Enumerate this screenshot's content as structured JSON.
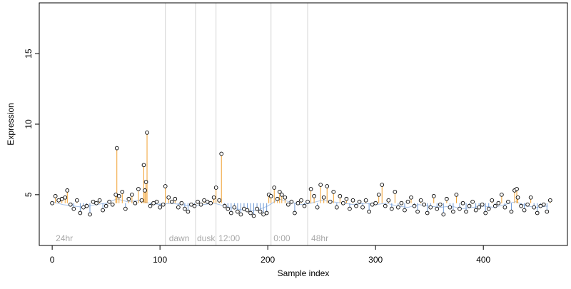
{
  "chart_data": {
    "type": "scatter",
    "title": "",
    "xlabel": "Sample index",
    "ylabel": "Expression",
    "xlim": [
      -12,
      478
    ],
    "ylim": [
      1.4,
      18.6
    ],
    "x_ticks": [
      0,
      100,
      200,
      300,
      400
    ],
    "y_ticks": [
      5,
      10,
      15
    ],
    "grid": false,
    "legend": "none",
    "colors": {
      "above_stem": "#f0a030",
      "below_stem": "#6f9ad6",
      "marker_edge": "#000000",
      "separator": "#d4d4d4",
      "section_label": "#a8a8a8",
      "axis": "#000000",
      "fitted_curve": "#6f9ad6"
    },
    "baseline": 4.4,
    "section_boundaries": [
      105,
      133,
      152,
      203,
      237
    ],
    "section_labels": [
      {
        "text": "24hr",
        "x": 2
      },
      {
        "text": "dawn",
        "x": 107
      },
      {
        "text": "dusk",
        "x": 133
      },
      {
        "text": "12:00",
        "x": 153
      },
      {
        "text": "0:00",
        "x": 204
      },
      {
        "text": "48hr",
        "x": 239
      }
    ],
    "series": [
      {
        "x": [
          0,
          3,
          6,
          9,
          12,
          14,
          17,
          20,
          23,
          26,
          29,
          32,
          35,
          38,
          41,
          44,
          47,
          50,
          53,
          56,
          59,
          60,
          62,
          65,
          68,
          71,
          74,
          77,
          80,
          83,
          85,
          86,
          87,
          88,
          91,
          94,
          97,
          100,
          103,
          105,
          108,
          111,
          114,
          117,
          120,
          123,
          126,
          129,
          132,
          135,
          138,
          141,
          144,
          147,
          150,
          152,
          155,
          157,
          160,
          163,
          166,
          169,
          172,
          175,
          178,
          181,
          184,
          187,
          190,
          193,
          196,
          199,
          201,
          203,
          206,
          209,
          211,
          213,
          216,
          219,
          222,
          225,
          228,
          231,
          234,
          237,
          240,
          243,
          246,
          249,
          252,
          255,
          258,
          261,
          264,
          267,
          270,
          273,
          276,
          279,
          282,
          285,
          288,
          291,
          294,
          297,
          300,
          303,
          306,
          309,
          312,
          315,
          318,
          321,
          324,
          327,
          330,
          333,
          336,
          339,
          342,
          345,
          348,
          351,
          354,
          357,
          360,
          363,
          366,
          369,
          372,
          375,
          378,
          381,
          384,
          387,
          390,
          393,
          396,
          399,
          402,
          405,
          408,
          411,
          414,
          417,
          420,
          423,
          426,
          429,
          431,
          432,
          435,
          438,
          441,
          444,
          447,
          450,
          453,
          456,
          459,
          462
        ],
        "y": [
          4.4,
          4.9,
          4.6,
          4.7,
          4.8,
          5.3,
          4.3,
          4.0,
          4.6,
          3.7,
          4.1,
          4.2,
          3.6,
          4.5,
          4.4,
          4.6,
          3.9,
          4.2,
          4.5,
          4.3,
          5.0,
          8.3,
          4.9,
          5.2,
          4.0,
          4.7,
          5.0,
          4.4,
          5.4,
          4.6,
          7.1,
          5.3,
          5.9,
          9.4,
          4.2,
          4.4,
          4.5,
          4.1,
          4.3,
          5.6,
          4.8,
          4.5,
          4.7,
          4.1,
          4.4,
          4.0,
          3.8,
          4.3,
          4.2,
          4.5,
          4.3,
          4.6,
          4.5,
          4.4,
          4.8,
          5.5,
          4.6,
          7.9,
          4.2,
          4.0,
          3.7,
          4.1,
          3.8,
          3.6,
          4.0,
          3.9,
          3.7,
          3.5,
          4.0,
          3.8,
          3.6,
          3.7,
          5.0,
          4.9,
          5.5,
          4.7,
          5.2,
          5.0,
          4.8,
          4.3,
          4.5,
          3.7,
          4.4,
          4.6,
          4.2,
          4.5,
          5.4,
          4.9,
          4.1,
          5.7,
          4.8,
          5.6,
          4.5,
          5.2,
          4.1,
          4.9,
          4.4,
          4.7,
          4.0,
          4.6,
          4.2,
          4.5,
          4.1,
          4.6,
          3.8,
          4.3,
          4.4,
          5.0,
          5.7,
          4.2,
          4.6,
          4.0,
          5.2,
          4.1,
          4.4,
          3.9,
          4.5,
          4.8,
          4.2,
          3.8,
          4.6,
          4.3,
          3.7,
          4.1,
          4.9,
          4.0,
          4.3,
          3.6,
          4.7,
          4.1,
          3.8,
          5.0,
          4.0,
          4.4,
          3.8,
          4.2,
          4.5,
          3.9,
          4.1,
          4.3,
          3.7,
          4.0,
          4.6,
          4.2,
          4.4,
          5.0,
          4.1,
          4.5,
          3.8,
          5.3,
          5.4,
          4.8,
          4.2,
          3.9,
          4.3,
          4.8,
          4.1,
          3.7,
          4.2,
          4.3,
          3.8,
          4.6
        ]
      }
    ],
    "fitted_curve": {
      "x": [
        0,
        10,
        20,
        30,
        40,
        50,
        60,
        70,
        80,
        90,
        100,
        110,
        120,
        130,
        140,
        150,
        160,
        170,
        180,
        190,
        200,
        210,
        220,
        230,
        240,
        250,
        260,
        270,
        280,
        290,
        300,
        310,
        320,
        330,
        340,
        350,
        360,
        370,
        380,
        390,
        400,
        410,
        420,
        430,
        440,
        450,
        460
      ],
      "y": [
        4.5,
        4.3,
        4.2,
        4.1,
        4.3,
        4.4,
        4.7,
        4.5,
        4.6,
        4.4,
        4.3,
        4.4,
        4.3,
        4.2,
        4.3,
        4.4,
        4.2,
        4.0,
        3.9,
        3.9,
        4.2,
        4.7,
        4.5,
        4.3,
        4.4,
        4.6,
        4.5,
        4.4,
        4.3,
        4.4,
        4.3,
        4.4,
        4.2,
        4.1,
        4.3,
        4.2,
        4.1,
        4.2,
        4.0,
        4.1,
        4.2,
        4.1,
        4.3,
        4.5,
        4.2,
        4.1,
        4.2
      ]
    }
  }
}
